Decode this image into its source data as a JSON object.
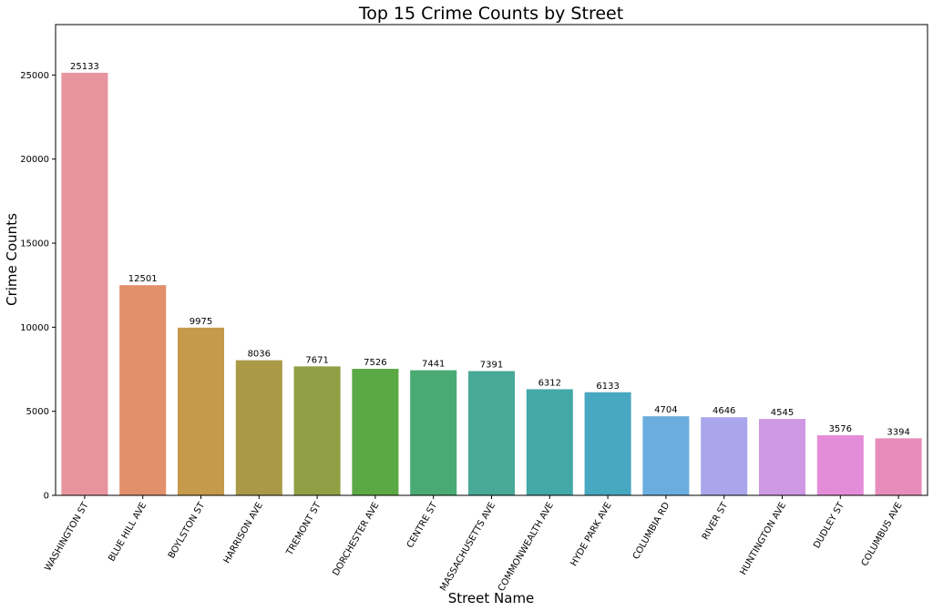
{
  "chart_data": {
    "type": "bar",
    "title": "Top 15 Crime Counts by Street",
    "xlabel": "Street Name",
    "ylabel": "Crime Counts",
    "categories": [
      "WASHINGTON ST",
      "BLUE HILL AVE",
      "BOYLSTON ST",
      "HARRISON AVE",
      "TREMONT ST",
      "DORCHESTER AVE",
      "CENTRE ST",
      "MASSACHUSETTS AVE",
      "COMMONWEALTH AVE",
      "HYDE PARK AVE",
      "COLUMBIA RD",
      "RIVER ST",
      "HUNTINGTON AVE",
      "DUDLEY ST",
      "COLUMBUS AVE"
    ],
    "values": [
      25133,
      12501,
      9975,
      8036,
      7671,
      7526,
      7441,
      7391,
      6312,
      6133,
      4704,
      4646,
      4545,
      3576,
      3394
    ],
    "data_labels": [
      "25133",
      "12501",
      "9975",
      "8036",
      "7671",
      "7526",
      "7441",
      "7391",
      "6312",
      "6133",
      "4704",
      "4646",
      "4545",
      "3576",
      "3394"
    ],
    "colors": [
      "#e8949f",
      "#e28f6b",
      "#c59a4b",
      "#aa9a47",
      "#919f44",
      "#5ba944",
      "#4aaa74",
      "#48a997",
      "#44a8a8",
      "#48a7c1",
      "#6badde",
      "#aaa6eb",
      "#cf98e4",
      "#e58cd9",
      "#e88dbb"
    ],
    "y_ticks": [
      0,
      5000,
      10000,
      15000,
      20000,
      25000
    ],
    "y_tick_labels": [
      "0",
      "5000",
      "10000",
      "15000",
      "20000",
      "25000"
    ],
    "ylim": [
      0,
      28000
    ],
    "grid": false,
    "legend": "none"
  }
}
